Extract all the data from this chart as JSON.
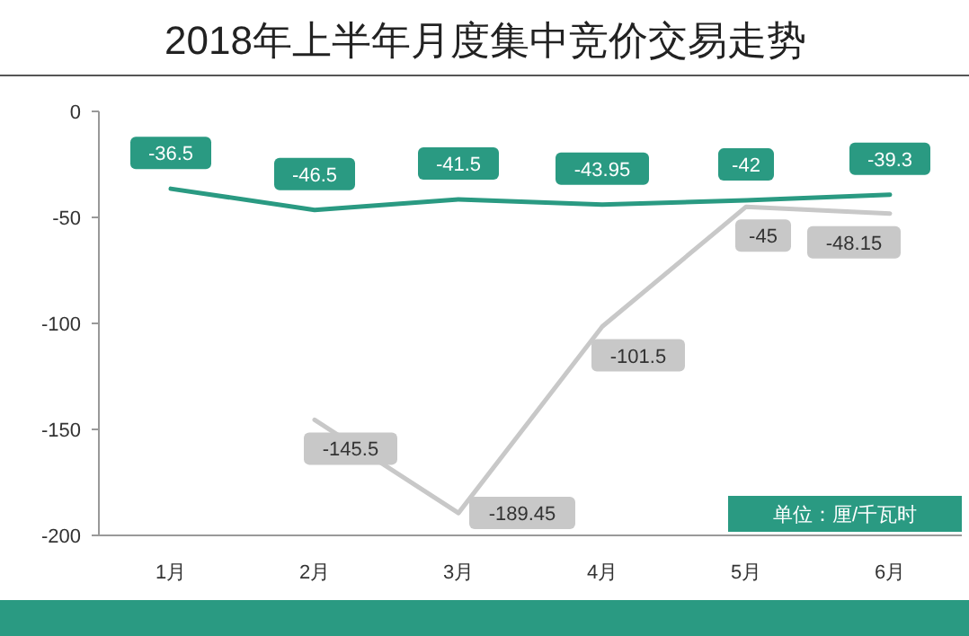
{
  "chart_data": {
    "type": "line",
    "title": "2018年上半年月度集中竞价交易走势",
    "categories": [
      "1月",
      "2月",
      "3月",
      "4月",
      "5月",
      "6月"
    ],
    "series": [
      {
        "color": "#2a9a82",
        "values": [
          -36.5,
          -46.5,
          -41.5,
          -43.95,
          -42,
          -39.3
        ]
      },
      {
        "color": "#c8c8c8",
        "values": [
          null,
          -145.5,
          -189.45,
          -101.5,
          -45,
          -48.15
        ]
      }
    ],
    "ylim": [
      -200,
      0
    ],
    "yticks": [
      0,
      -50,
      -100,
      -150,
      -200
    ],
    "grid": false,
    "data_labels": true,
    "marker": "none",
    "line_style": "solid",
    "annotations": [
      "单位：厘/千瓦时"
    ]
  }
}
